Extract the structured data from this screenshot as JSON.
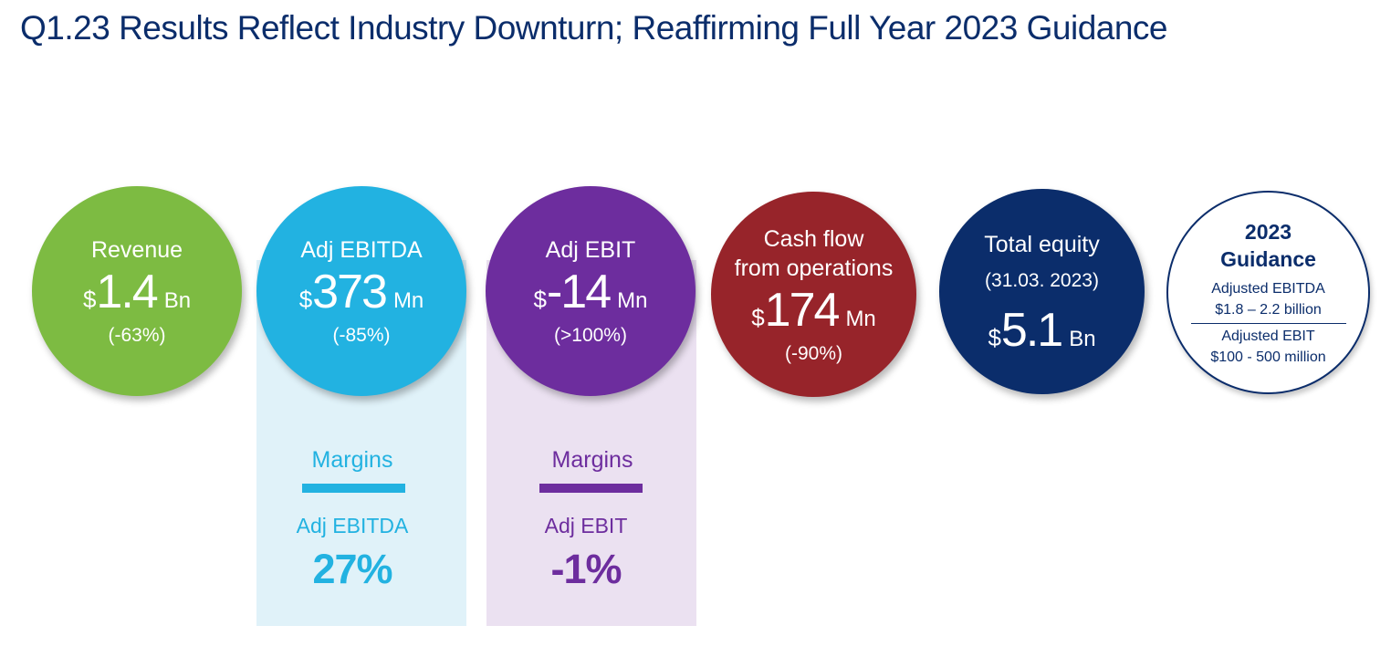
{
  "title": "Q1.23 Results Reflect Industry Downturn; Reaffirming Full Year 2023 Guidance",
  "colors": {
    "revenue": "#7dbb42",
    "ebitda": "#22b2e1",
    "ebit": "#6d2d9e",
    "cashflow": "#97242a",
    "equity": "#0b2d6b",
    "title": "#0b2d6b"
  },
  "metrics": {
    "revenue": {
      "label": "Revenue",
      "currency": "$",
      "value": "1.4",
      "unit": "Bn",
      "change": "(-63%)"
    },
    "ebitda": {
      "label": "Adj EBITDA",
      "currency": "$",
      "value": "373",
      "unit": "Mn",
      "change": "(-85%)"
    },
    "ebit": {
      "label": "Adj EBIT",
      "currency": "$",
      "value": "-14",
      "unit": "Mn",
      "change": "(>100%)"
    },
    "cashflow": {
      "label_line1": "Cash flow",
      "label_line2": "from operations",
      "currency": "$",
      "value": "174",
      "unit": "Mn",
      "change": "(-90%)"
    },
    "equity": {
      "label": "Total equity",
      "date": "(31.03. 2023)",
      "currency": "$",
      "value": "5.1",
      "unit": "Bn"
    }
  },
  "guidance": {
    "title_line1": "2023",
    "title_line2": "Guidance",
    "ebitda_label": "Adjusted EBITDA",
    "ebitda_range": "$1.8 – 2.2 billion",
    "ebit_label": "Adjusted EBIT",
    "ebit_range": "$100 - 500 million"
  },
  "margins": {
    "ebitda": {
      "heading": "Margins",
      "label": "Adj EBITDA",
      "value": "27%"
    },
    "ebit": {
      "heading": "Margins",
      "label": "Adj EBIT",
      "value": "-1%"
    }
  }
}
